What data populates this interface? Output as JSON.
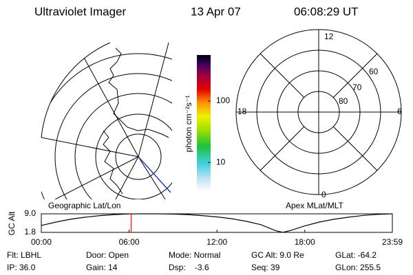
{
  "header": {
    "title": "Ultraviolet Imager",
    "date": "13 Apr 07",
    "time": "06:08:29 UT"
  },
  "map": {
    "caption": "Geographic Lat/Lon"
  },
  "colorbar": {
    "label": "photon cm⁻²s⁻¹",
    "log": true,
    "lim": [
      3.4,
      565
    ],
    "ticks": [
      10,
      100
    ]
  },
  "polar": {
    "caption": "Apex MLat/MLT",
    "mlt_labels": [
      "12",
      "18",
      "6",
      "0"
    ],
    "mlat_labels": [
      "60",
      "70",
      "80"
    ]
  },
  "chart_data": {
    "type": "line",
    "ylabel": "GC Alt",
    "color": "#000000",
    "x": [
      0,
      60,
      120,
      180,
      240,
      300,
      360,
      420,
      480,
      540,
      600,
      660,
      720,
      780,
      840,
      900,
      960,
      990,
      1020,
      1080,
      1140,
      1200,
      1260,
      1320,
      1380,
      1439
    ],
    "values": [
      4.5,
      5.8,
      6.9,
      7.7,
      8.3,
      8.7,
      8.95,
      9.0,
      9.0,
      8.9,
      8.7,
      8.3,
      7.8,
      7.1,
      6.1,
      4.8,
      2.5,
      1.8,
      2.5,
      4.3,
      5.8,
      6.9,
      7.7,
      8.4,
      8.8,
      9.0
    ],
    "xlim": [
      0,
      1439
    ],
    "ylim": [
      1.8,
      9.0
    ],
    "xticks": [
      {
        "value": 0,
        "label": "00:00"
      },
      {
        "value": 360,
        "label": "06:00"
      },
      {
        "value": 720,
        "label": "12:00"
      },
      {
        "value": 1080,
        "label": "18:00"
      },
      {
        "value": 1439,
        "label": "23:59"
      }
    ],
    "yticks": [
      {
        "value": 9.0,
        "label": "9.0"
      },
      1.8
    ],
    "current_x": 368,
    "current_color": "#ff0000"
  },
  "info": [
    [
      "Flt: LBHL",
      "Door: Open",
      "Mode: Normal",
      "GC Alt: 9.0 Re",
      "GLat: -64.2"
    ],
    [
      "IP: 36.0",
      "Gain: 14",
      "Dsp:    -3.6",
      "Seq: 39",
      "GLon: 255.5"
    ]
  ]
}
